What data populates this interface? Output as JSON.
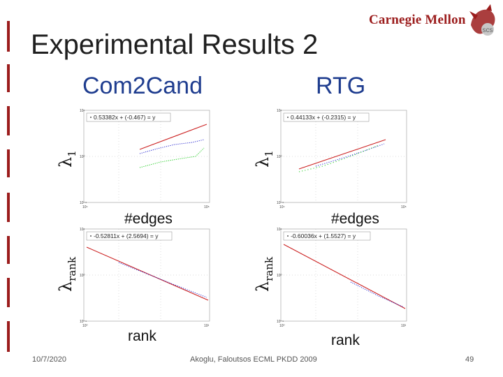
{
  "slide": {
    "title": "Experimental Results 2",
    "date": "10/7/2020",
    "footer_center": "Akoglu, Faloutsos ECML PKDD 2009",
    "page_number": "49"
  },
  "logo": {
    "text": "Carnegie Mellon",
    "badge": "scs"
  },
  "columns": {
    "left": "Com2Cand",
    "right": "RTG"
  },
  "plots": {
    "com2cand_top": {
      "ylabel_sym": "λ",
      "ylabel_sub": "1",
      "xlabel": "#edges",
      "fit_equation": "0.53382x + (-0.467) = y"
    },
    "rtg_top": {
      "ylabel_sym": "λ",
      "ylabel_sub": "1",
      "xlabel": "#edges",
      "fit_equation": "0.44133x + (-0.2315) = y"
    },
    "com2cand_bottom": {
      "ylabel_sym": "λ",
      "ylabel_sub": "rank",
      "xlabel": "rank",
      "fit_equation": "-0.52811x + (2.5694) = y"
    },
    "rtg_bottom": {
      "ylabel_sym": "λ",
      "ylabel_sub": "rank",
      "xlabel": "rank",
      "fit_equation": "-0.60036x + (1.5527) = y"
    }
  },
  "colors": {
    "accent": "#9b1c1c",
    "heading": "#1f3d8f",
    "fit_red": "#cc2222",
    "series_blue": "#2a2ad0",
    "series_green": "#22cc22"
  }
}
